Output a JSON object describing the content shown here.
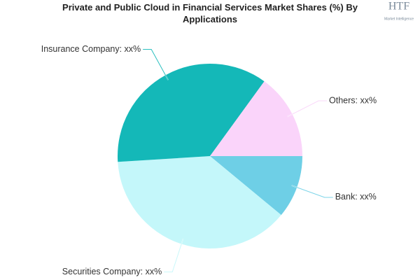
{
  "chart_data": {
    "type": "pie",
    "title": "Private and Public Cloud in Financial Services Market Shares (%) By Applications",
    "categories": [
      "Bank",
      "Securities Company",
      "Insurance Company",
      "Others"
    ],
    "value_labels": [
      "Bank: xx%",
      "Securities Company: xx%",
      "Insurance Company: xx%",
      "Others: xx%"
    ],
    "values": [
      11,
      38,
      36,
      15
    ],
    "colors": [
      "#6ecfe6",
      "#c4f7fa",
      "#14b8b8",
      "#fad4fa"
    ]
  },
  "logo": {
    "text": "HTF",
    "subtext": "Market Intelligence"
  }
}
